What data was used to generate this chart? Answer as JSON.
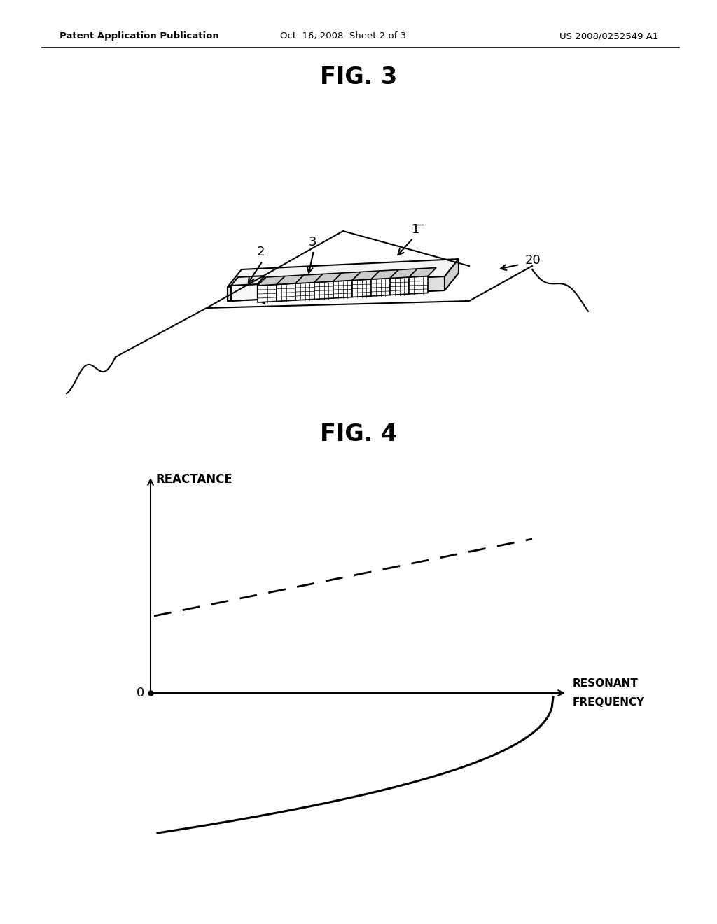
{
  "bg_color": "#ffffff",
  "header_left": "Patent Application Publication",
  "header_center": "Oct. 16, 2008  Sheet 2 of 3",
  "header_right": "US 2008/0252549 A1",
  "fig3_title": "FIG. 3",
  "fig4_title": "FIG. 4",
  "fig4_ylabel": "REACTANCE",
  "fig4_xlabel1": "RESONANT",
  "fig4_xlabel2": "FREQUENCY",
  "fig4_zero": "0"
}
